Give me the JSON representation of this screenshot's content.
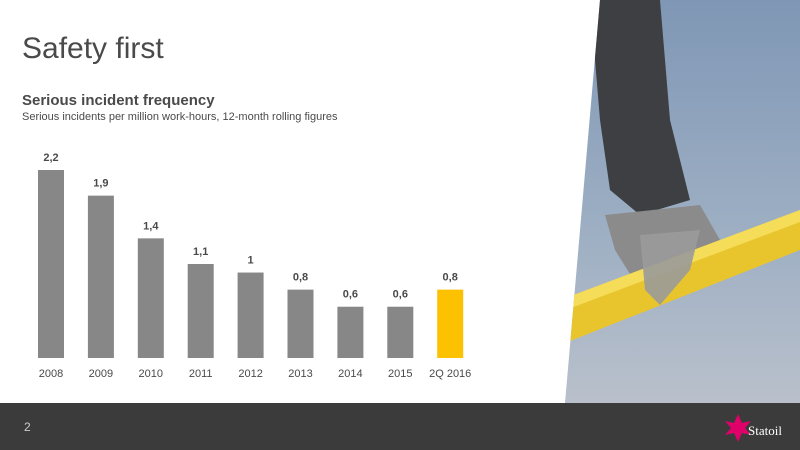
{
  "slide": {
    "title": "Safety first",
    "page_number": 2,
    "logo": "Statoil"
  },
  "chart_data": {
    "type": "bar",
    "title": "Serious incident frequency",
    "subtitle": "Serious incidents per million work-hours, 12-month rolling figures",
    "categories": [
      "2008",
      "2009",
      "2010",
      "2011",
      "2012",
      "2013",
      "2014",
      "2015",
      "2Q 2016"
    ],
    "values": [
      2.2,
      1.9,
      1.4,
      1.1,
      1,
      0.8,
      0.6,
      0.6,
      0.8
    ],
    "value_labels": [
      "2,2",
      "1,9",
      "1,4",
      "1,1",
      "1",
      "0,8",
      "0,6",
      "0,6",
      "0,8"
    ],
    "colors": [
      "#878787",
      "#878787",
      "#878787",
      "#878787",
      "#878787",
      "#878787",
      "#878787",
      "#878787",
      "#fcc100"
    ]
  }
}
